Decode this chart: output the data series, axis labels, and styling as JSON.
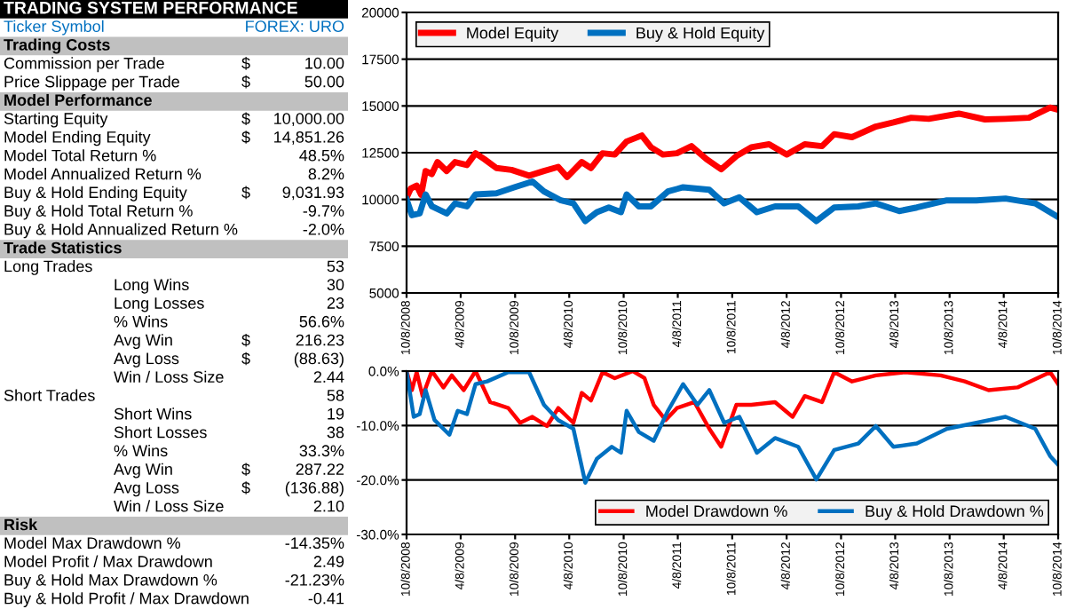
{
  "chart_data": [
    {
      "type": "other",
      "title": "TRADING SYSTEM PERFORMANCE",
      "annotations": [
        "Ticker Symbol\t\t\tFOREX: URO",
        "Trading Costs",
        "Commission per Trade\t\t$\t10.00",
        "Price Slippage per Trade\t\t$\t50.00",
        "Model Performance",
        "Starting Equity\t\t$\t10,000.00",
        "Model Ending Equity\t\t$\t14,851.26",
        "Model Total Return %\t\t\t48.5%",
        "Model Annualized Return %\t\t\t8.2%",
        "Buy & Hold Ending Equity\t\t$\t9,031.93",
        "Buy & Hold Total Return %\t\t\t-9.7%",
        "Buy & Hold Annualized Return %\t\t\t-2.0%",
        "Trade Statistics",
        "Long Trades\t\t\t53",
        "\tLong Wins\t\t30",
        "\tLong Losses\t\t23",
        "\t% Wins\t\t56.6%",
        "\tAvg Win\t$\t216.23",
        "\tAvg Loss\t$\t(88.63)",
        "\tWin / Loss Size\t\t2.44",
        "Short Trades\t\t\t58",
        "\tShort Wins\t\t19",
        "\tShort Losses\t\t38",
        "\t% Wins\t\t33.3%",
        "\tAvg Win\t$\t287.22",
        "\tAvg Loss\t$\t(136.88)",
        "\tWin / Loss Size\t\t2.10",
        "Risk",
        "Model Max Drawdown %\t\t\t-14.35%",
        "Model Profit / Max Drawdown\t\t\t2.49",
        "Buy & Hold Max Drawdown %\t\t\t-21.23%",
        "Buy & Hold Profit / Max Drawdown\t\t\t-0.41"
      ]
    },
    {
      "type": "line",
      "xlim": [
        "2008-10-08",
        "2014-10-08"
      ],
      "ylim": [
        5000,
        20000
      ],
      "yticks": [
        5000,
        7500,
        10000,
        12500,
        15000,
        17500,
        20000
      ],
      "xticks": [
        {
          "value": "2008-10-08",
          "label": "10/8/2008"
        },
        {
          "value": "2009-04-08",
          "label": "4/8/2009"
        },
        {
          "value": "2009-10-08",
          "label": "10/8/2009"
        },
        {
          "value": "2010-04-08",
          "label": "4/8/2010"
        },
        {
          "value": "2010-10-08",
          "label": "10/8/2010"
        },
        {
          "value": "2011-04-08",
          "label": "4/8/2011"
        },
        {
          "value": "2011-10-08",
          "label": "10/8/2011"
        },
        {
          "value": "2012-04-08",
          "label": "4/8/2012"
        },
        {
          "value": "2012-10-08",
          "label": "10/8/2012"
        },
        {
          "value": "2013-04-08",
          "label": "4/8/2013"
        },
        {
          "value": "2013-10-08",
          "label": "10/8/2013"
        },
        {
          "value": "2014-04-08",
          "label": "4/8/2014"
        },
        {
          "value": "2014-10-08",
          "label": "10/8/2014"
        }
      ],
      "grid": "y",
      "legend": "top left",
      "series": [
        {
          "name": "Model Equity",
          "color": "#ff0000",
          "x": [
            "2008-10-08",
            "2008-10-22",
            "2008-11-11",
            "2008-11-26",
            "2008-12-11",
            "2009-01-01",
            "2009-01-20",
            "2009-02-20",
            "2009-03-20",
            "2009-04-29",
            "2009-05-28",
            "2009-06-27",
            "2009-08-06",
            "2009-09-26",
            "2009-11-24",
            "2010-01-13",
            "2010-03-02",
            "2010-04-01",
            "2010-05-20",
            "2010-06-20",
            "2010-07-29",
            "2010-09-08",
            "2010-10-18",
            "2010-12-08",
            "2011-01-08",
            "2011-02-17",
            "2011-04-05",
            "2011-05-24",
            "2011-07-14",
            "2011-09-01",
            "2011-10-22",
            "2011-12-11",
            "2012-02-09",
            "2012-04-08",
            "2012-06-08",
            "2012-08-05",
            "2012-09-15",
            "2012-11-14",
            "2013-02-02",
            "2013-04-02",
            "2013-06-01",
            "2013-07-30",
            "2013-11-08",
            "2014-02-04",
            "2014-04-14",
            "2014-07-02",
            "2014-09-11",
            "2014-10-08"
          ],
          "values": [
            10100,
            10580,
            10740,
            10250,
            11520,
            11360,
            12000,
            11520,
            12000,
            11840,
            12470,
            12150,
            11680,
            11580,
            11270,
            11520,
            11740,
            11200,
            12000,
            11680,
            12470,
            12400,
            13100,
            13420,
            12790,
            12400,
            12470,
            12850,
            12150,
            11610,
            12320,
            12790,
            12950,
            12400,
            12950,
            12850,
            13490,
            13330,
            13900,
            14120,
            14370,
            14310,
            14590,
            14280,
            14310,
            14370,
            14910,
            14800
          ]
        },
        {
          "name": "Buy & Hold Equity",
          "color": "#0070c0",
          "x": [
            "2008-10-08",
            "2008-10-26",
            "2008-11-21",
            "2008-12-11",
            "2009-01-01",
            "2009-02-20",
            "2009-03-20",
            "2009-04-29",
            "2009-05-28",
            "2009-08-06",
            "2009-10-05",
            "2009-12-05",
            "2010-01-13",
            "2010-03-11",
            "2010-04-22",
            "2010-06-01",
            "2010-07-10",
            "2010-08-19",
            "2010-09-29",
            "2010-10-18",
            "2010-11-28",
            "2011-01-08",
            "2011-03-06",
            "2011-04-26",
            "2011-07-23",
            "2011-09-11",
            "2011-11-01",
            "2011-12-30",
            "2012-02-29",
            "2012-05-17",
            "2012-07-17",
            "2012-09-15",
            "2012-12-05",
            "2013-02-02",
            "2013-04-22",
            "2013-06-20",
            "2013-09-29",
            "2014-01-06",
            "2014-04-14",
            "2014-07-23",
            "2014-10-08"
          ],
          "values": [
            10000,
            9160,
            9250,
            10270,
            9630,
            9250,
            9790,
            9630,
            10270,
            10330,
            10650,
            10960,
            10430,
            9950,
            9790,
            8840,
            9320,
            9570,
            9320,
            10270,
            9630,
            9630,
            10430,
            10650,
            10520,
            9790,
            10110,
            9320,
            9630,
            9630,
            8840,
            9570,
            9630,
            9790,
            9380,
            9570,
            9950,
            9950,
            10050,
            9790,
            9060
          ]
        }
      ]
    },
    {
      "type": "line",
      "xlim": [
        "2008-10-08",
        "2014-10-08"
      ],
      "ylim": [
        -30,
        0
      ],
      "yticks": [
        {
          "value": -30,
          "label": "-30.0%"
        },
        {
          "value": -20,
          "label": "-20.0%"
        },
        {
          "value": -10,
          "label": "-10.0%"
        },
        {
          "value": 0,
          "label": "0.0%"
        }
      ],
      "xticks": [
        {
          "value": "2008-10-08",
          "label": "10/8/2008"
        },
        {
          "value": "2009-04-08",
          "label": "4/8/2009"
        },
        {
          "value": "2009-10-08",
          "label": "10/8/2009"
        },
        {
          "value": "2010-04-08",
          "label": "4/8/2010"
        },
        {
          "value": "2010-10-08",
          "label": "10/8/2010"
        },
        {
          "value": "2011-04-08",
          "label": "4/8/2011"
        },
        {
          "value": "2011-10-08",
          "label": "10/8/2011"
        },
        {
          "value": "2012-04-08",
          "label": "4/8/2012"
        },
        {
          "value": "2012-10-08",
          "label": "10/8/2012"
        },
        {
          "value": "2013-04-08",
          "label": "4/8/2013"
        },
        {
          "value": "2013-10-08",
          "label": "10/8/2013"
        },
        {
          "value": "2014-04-08",
          "label": "4/8/2014"
        },
        {
          "value": "2014-10-08",
          "label": "10/8/2014"
        }
      ],
      "grid": "y",
      "legend": "bottom right",
      "series": [
        {
          "name": "Model Drawdown %",
          "color": "#ff0000",
          "x": [
            "2008-10-08",
            "2008-10-26",
            "2008-11-11",
            "2008-12-01",
            "2009-01-01",
            "2009-02-09",
            "2009-03-09",
            "2009-04-18",
            "2009-05-28",
            "2009-07-16",
            "2009-09-15",
            "2009-10-25",
            "2009-12-05",
            "2010-01-23",
            "2010-03-02",
            "2010-04-22",
            "2010-05-20",
            "2010-06-20",
            "2010-07-29",
            "2010-09-08",
            "2010-11-08",
            "2010-12-17",
            "2011-01-17",
            "2011-02-26",
            "2011-04-05",
            "2011-06-03",
            "2011-07-23",
            "2011-09-01",
            "2011-10-22",
            "2011-12-11",
            "2012-02-29",
            "2012-04-28",
            "2012-06-08",
            "2012-08-05",
            "2012-09-15",
            "2012-11-14",
            "2013-02-02",
            "2013-05-11",
            "2013-09-08",
            "2013-11-28",
            "2014-02-16",
            "2014-05-24",
            "2014-09-11",
            "2014-10-08"
          ],
          "values": [
            0,
            -3.5,
            -0.2,
            -4.6,
            0,
            -3,
            -0.8,
            -3.5,
            0,
            -5.7,
            -6.8,
            -9.5,
            -8.4,
            -10.1,
            -6.8,
            -9.5,
            -4,
            -5.4,
            -0.2,
            -1.3,
            0,
            -1.3,
            -6.2,
            -9,
            -6.8,
            -5.7,
            -10.6,
            -13.9,
            -6.2,
            -6.2,
            -5.7,
            -8.4,
            -4.6,
            -5.7,
            -0.2,
            -1.9,
            -0.8,
            -0.2,
            -0.8,
            -1.9,
            -3.5,
            -3,
            -0.2,
            -2.4
          ]
        },
        {
          "name": "Buy & Hold Drawdown %",
          "color": "#0070c0",
          "x": [
            "2008-10-08",
            "2008-11-01",
            "2008-11-21",
            "2008-12-11",
            "2009-01-10",
            "2009-03-01",
            "2009-03-29",
            "2009-04-29",
            "2009-05-28",
            "2009-07-06",
            "2009-09-15",
            "2009-11-24",
            "2010-01-13",
            "2010-03-02",
            "2010-04-22",
            "2010-06-01",
            "2010-07-10",
            "2010-08-29",
            "2010-09-29",
            "2010-10-18",
            "2010-11-28",
            "2011-01-17",
            "2011-03-06",
            "2011-04-26",
            "2011-06-13",
            "2011-07-23",
            "2011-09-11",
            "2011-11-01",
            "2011-12-30",
            "2012-02-29",
            "2012-05-17",
            "2012-07-17",
            "2012-09-15",
            "2012-12-05",
            "2013-02-02",
            "2013-04-02",
            "2013-06-20",
            "2013-09-29",
            "2014-01-06",
            "2014-04-14",
            "2014-07-23",
            "2014-09-11",
            "2014-10-08"
          ],
          "values": [
            0,
            -8.4,
            -7.9,
            -3.5,
            -9,
            -11.7,
            -7.3,
            -7.9,
            -2.4,
            -1.9,
            -0.2,
            -0.2,
            -6.2,
            -9,
            -10.6,
            -20.5,
            -16.1,
            -13.9,
            -15,
            -7.3,
            -11.2,
            -12.8,
            -7.3,
            -2.4,
            -6.2,
            -3.5,
            -9.5,
            -8.4,
            -15,
            -12.3,
            -13.9,
            -19.9,
            -14.5,
            -13.3,
            -10.1,
            -13.9,
            -13.3,
            -10.6,
            -9.5,
            -8.4,
            -10.6,
            -15.6,
            -17.2
          ]
        }
      ]
    }
  ]
}
